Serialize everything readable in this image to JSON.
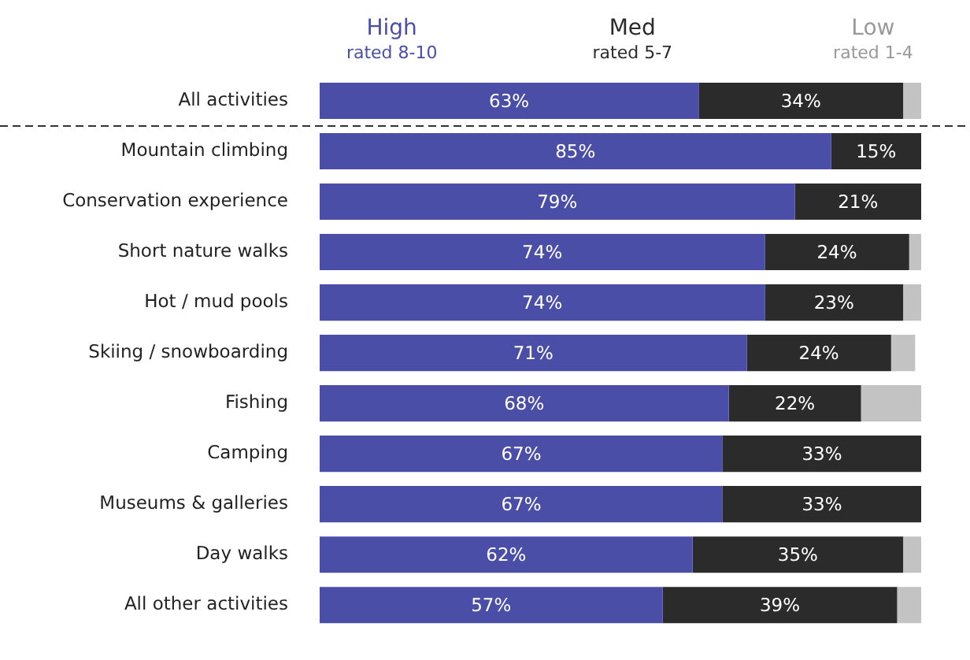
{
  "chart_data": {
    "type": "bar",
    "orientation": "horizontal",
    "stacked": true,
    "legend": "top",
    "xlim": [
      0,
      100
    ],
    "categories": [
      "All activities",
      "Mountain climbing",
      "Conservation experience",
      "Short nature walks",
      "Hot / mud pools",
      "Skiing / snowboarding",
      "Fishing",
      "Camping",
      "Museums & galleries",
      "Day walks",
      "All other activities"
    ],
    "series": [
      {
        "name": "High rated 8-10",
        "color": "#4b4ea6",
        "values": [
          63,
          85,
          79,
          74,
          74,
          71,
          68,
          67,
          67,
          62,
          57
        ],
        "value_labels": [
          "63%",
          "85%",
          "79%",
          "74%",
          "74%",
          "71%",
          "68%",
          "67%",
          "67%",
          "62%",
          "57%"
        ]
      },
      {
        "name": "Med rated 5-7",
        "color": "#2b2b2b",
        "values": [
          34,
          15,
          21,
          24,
          23,
          24,
          22,
          33,
          33,
          35,
          39
        ],
        "value_labels": [
          "34%",
          "15%",
          "21%",
          "24%",
          "23%",
          "24%",
          "22%",
          "33%",
          "33%",
          "35%",
          "39%"
        ]
      },
      {
        "name": "Low rated 1-4",
        "color": "#c3c3c3",
        "values": [
          3,
          0,
          0,
          2,
          3,
          4,
          10,
          0,
          0,
          3,
          4
        ],
        "value_labels": [
          null,
          null,
          null,
          null,
          null,
          null,
          null,
          null,
          null,
          null,
          null
        ]
      }
    ]
  }
}
